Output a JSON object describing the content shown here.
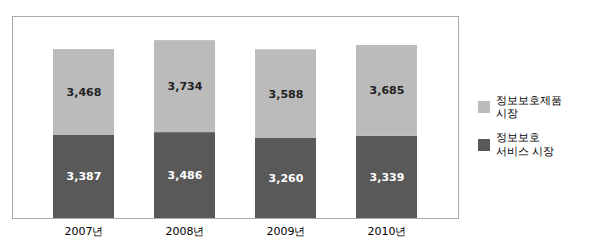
{
  "chart_data": {
    "type": "bar",
    "stacked": true,
    "categories": [
      "2007년",
      "2008년",
      "2009년",
      "2010년"
    ],
    "series": [
      {
        "name": "정보보호\n서비스 시장",
        "color": "#595959",
        "values": [
          3387,
          3486,
          3260,
          3339
        ],
        "value_labels": [
          "3,387",
          "3,486",
          "3,260",
          "3,339"
        ]
      },
      {
        "name": "정보보호제품\n시장",
        "color": "#bbbbbb",
        "values": [
          3468,
          3734,
          3588,
          3685
        ],
        "value_labels": [
          "3,468",
          "3,734",
          "3,588",
          "3,685"
        ]
      }
    ],
    "ylim": [
      0,
      8200
    ],
    "yticks": [],
    "tick_labels": "x",
    "data_labels": true,
    "legend": "right"
  }
}
